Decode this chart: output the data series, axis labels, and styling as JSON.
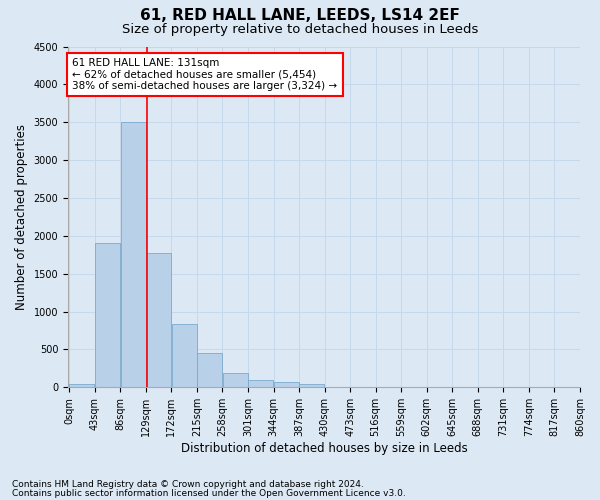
{
  "title": "61, RED HALL LANE, LEEDS, LS14 2EF",
  "subtitle": "Size of property relative to detached houses in Leeds",
  "xlabel": "Distribution of detached houses by size in Leeds",
  "ylabel": "Number of detached properties",
  "bin_edges": [
    0,
    43,
    86,
    129,
    172,
    215,
    258,
    301,
    344,
    387,
    430,
    473,
    516,
    559,
    602,
    645,
    688,
    731,
    774,
    817,
    860
  ],
  "bin_labels": [
    "0sqm",
    "43sqm",
    "86sqm",
    "129sqm",
    "172sqm",
    "215sqm",
    "258sqm",
    "301sqm",
    "344sqm",
    "387sqm",
    "430sqm",
    "473sqm",
    "516sqm",
    "559sqm",
    "602sqm",
    "645sqm",
    "688sqm",
    "731sqm",
    "774sqm",
    "817sqm",
    "860sqm"
  ],
  "bar_heights": [
    50,
    1900,
    3500,
    1775,
    830,
    450,
    185,
    100,
    75,
    50,
    0,
    0,
    0,
    0,
    0,
    0,
    0,
    0,
    0,
    0
  ],
  "bar_color": "#b8d0e8",
  "bar_edge_color": "#7aaacf",
  "grid_color": "#c5d8ec",
  "background_color": "#dce9f5",
  "property_size": 131,
  "annotation_text": "61 RED HALL LANE: 131sqm\n← 62% of detached houses are smaller (5,454)\n38% of semi-detached houses are larger (3,324) →",
  "annotation_box_color": "white",
  "annotation_border_color": "red",
  "vline_color": "red",
  "ylim": [
    0,
    4500
  ],
  "yticks": [
    0,
    500,
    1000,
    1500,
    2000,
    2500,
    3000,
    3500,
    4000,
    4500
  ],
  "footnote1": "Contains HM Land Registry data © Crown copyright and database right 2024.",
  "footnote2": "Contains public sector information licensed under the Open Government Licence v3.0.",
  "title_fontsize": 11,
  "subtitle_fontsize": 9.5,
  "label_fontsize": 8.5,
  "tick_fontsize": 7,
  "annotation_fontsize": 7.5,
  "footnote_fontsize": 6.5
}
